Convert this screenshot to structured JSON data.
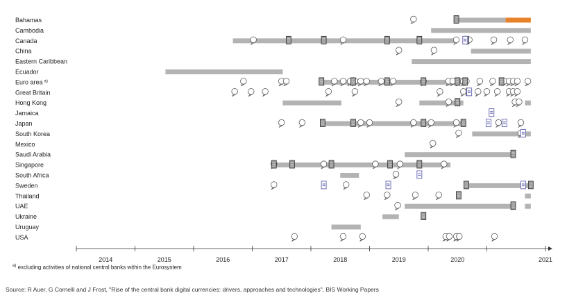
{
  "chart_data": {
    "type": "timeline",
    "x_axis": {
      "ticks": [
        "2014",
        "2015",
        "2016",
        "2017",
        "2018",
        "2019",
        "2020",
        "2021"
      ],
      "range": [
        2013.0,
        2021.0
      ]
    },
    "colors": {
      "bar": "#b3b3b3",
      "orange": "#e8822a",
      "report_icon": "#9a9a9a",
      "blue_icon": "#6f6fb8"
    },
    "footnote": {
      "marker": "a)",
      "text": " excluding activities of national central banks within the Eurosystem"
    },
    "source": "Source: R Auer, G Cornelli and J Frost, \"Rise of the central bank digital currencies: drivers, approaches and technologies\", BIS Working Papers",
    "rows": [
      {
        "name": "Bahamas",
        "sup": "",
        "bars": [
          [
            2019.51,
            2020.32
          ],
          [
            2020.32,
            2020.75
          ]
        ],
        "bar_colors": [
          "#b3b3b3",
          "#e8822a"
        ],
        "speeches": [
          2018.75
        ],
        "reports": [
          2019.48
        ],
        "blue": []
      },
      {
        "name": "Cambodia",
        "sup": "",
        "bars": [
          [
            2019.05,
            2020.75
          ]
        ],
        "speeches": [],
        "reports": [],
        "blue": []
      },
      {
        "name": "Canada",
        "sup": "",
        "bars": [
          [
            2015.67,
            2019.48
          ]
        ],
        "speeches": [
          2016.02,
          2017.55,
          2019.48,
          2019.7,
          2020.12,
          2020.4,
          2020.65
        ],
        "reports": [
          2016.62,
          2017.22,
          2018.3,
          2018.85,
          2019.65
        ],
        "blue": [
          2019.63
        ]
      },
      {
        "name": "China",
        "sup": "",
        "bars": [
          [
            2019.73,
            2020.75
          ]
        ],
        "speeches": [
          2018.5,
          2019.1
        ],
        "reports": [],
        "blue": []
      },
      {
        "name": "Eastern Caribbean",
        "sup": "",
        "bars": [
          [
            2018.72,
            2020.75
          ]
        ],
        "speeches": [],
        "reports": [],
        "blue": []
      },
      {
        "name": "Ecuador",
        "sup": "",
        "bars": [
          [
            2014.52,
            2016.52
          ]
        ],
        "speeches": [],
        "reports": [],
        "blue": []
      },
      {
        "name": "Euro area",
        "sup": "a)",
        "bars": [
          [
            2017.2,
            2019.52
          ]
        ],
        "speeches": [
          2015.85,
          2016.5,
          2016.58,
          2017.4,
          2017.55,
          2017.67,
          2017.75,
          2017.85,
          2017.95,
          2018.2,
          2018.4,
          2018.92,
          2019.35,
          2019.42,
          2019.52,
          2019.6,
          2019.65,
          2019.88,
          2020.1,
          2020.3,
          2020.38,
          2020.45,
          2020.52,
          2020.7
        ],
        "reports": [
          2017.18,
          2017.72,
          2018.3,
          2018.92,
          2019.5,
          2019.63,
          2020.25
        ],
        "blue": []
      },
      {
        "name": "Great Britain",
        "sup": "",
        "bars": [],
        "speeches": [
          2015.7,
          2015.98,
          2016.22,
          2017.3,
          2017.75,
          2019.2,
          2019.6,
          2019.85,
          2020.0,
          2020.18,
          2020.38,
          2020.45,
          2020.52
        ],
        "reports": [
          2019.69
        ],
        "blue": [
          2019.7
        ]
      },
      {
        "name": "Hong Kong",
        "sup": "",
        "bars": [
          [
            2016.52,
            2017.52
          ],
          [
            2018.85,
            2019.6
          ],
          [
            2020.65,
            2020.75
          ]
        ],
        "speeches": [
          2018.5,
          2019.35,
          2020.48,
          2020.55
        ],
        "reports": [
          2019.5
        ],
        "blue": []
      },
      {
        "name": "Jamaica",
        "sup": "",
        "bars": [],
        "speeches": [],
        "reports": [],
        "blue": [
          2020.08
        ]
      },
      {
        "name": "Japan",
        "sup": "",
        "bars": [
          [
            2017.22,
            2019.65
          ]
        ],
        "speeches": [
          2016.5,
          2016.85,
          2017.85,
          2018.0,
          2018.75,
          2019.05,
          2019.48,
          2020.2,
          2020.58
        ],
        "reports": [
          2017.2,
          2017.72,
          2018.92,
          2019.6
        ],
        "blue": [
          2020.03,
          2020.3
        ]
      },
      {
        "name": "South Korea",
        "sup": "",
        "bars": [
          [
            2019.75,
            2020.75
          ]
        ],
        "speeches": [
          2019.52,
          2020.58
        ],
        "reports": [],
        "blue": [
          2020.62
        ]
      },
      {
        "name": "Mexico",
        "sup": "",
        "bars": [],
        "speeches": [
          2019.08
        ],
        "reports": [],
        "blue": []
      },
      {
        "name": "Saudi Arabia",
        "sup": "",
        "bars": [
          [
            2018.6,
            2020.45
          ]
        ],
        "speeches": [],
        "reports": [
          2020.45
        ],
        "blue": []
      },
      {
        "name": "Singapore",
        "sup": "",
        "bars": [
          [
            2016.32,
            2019.38
          ]
        ],
        "speeches": [
          2016.37,
          2017.22,
          2018.1,
          2018.52,
          2019.27
        ],
        "reports": [
          2016.37,
          2016.68,
          2017.35,
          2018.35,
          2018.85
        ],
        "blue": []
      },
      {
        "name": "South Africa",
        "sup": "",
        "bars": [
          [
            2017.5,
            2017.82
          ]
        ],
        "speeches": [
          2018.45
        ],
        "reports": [],
        "blue": [
          2018.85
        ]
      },
      {
        "name": "Sweden",
        "sup": "",
        "bars": [
          [
            2019.65,
            2020.75
          ]
        ],
        "speeches": [
          2016.37,
          2017.6
        ],
        "reports": [
          2019.65,
          2020.75
        ],
        "blue": [
          2017.22,
          2018.32,
          2020.62
        ]
      },
      {
        "name": "Thailand",
        "sup": "",
        "bars": [
          [
            2020.65,
            2020.75
          ]
        ],
        "speeches": [
          2017.95,
          2018.3,
          2018.78,
          2019.18
        ],
        "reports": [
          2019.52
        ],
        "blue": []
      },
      {
        "name": "UAE",
        "sup": "",
        "bars": [
          [
            2018.6,
            2020.45
          ],
          [
            2020.65,
            2020.75
          ]
        ],
        "speeches": [
          2018.48
        ],
        "reports": [
          2020.45
        ],
        "blue": []
      },
      {
        "name": "Ukraine",
        "sup": "",
        "bars": [
          [
            2018.22,
            2018.5
          ]
        ],
        "speeches": [],
        "reports": [
          2018.92
        ],
        "blue": []
      },
      {
        "name": "Uruguay",
        "sup": "",
        "bars": [
          [
            2017.35,
            2017.85
          ]
        ],
        "speeches": [],
        "reports": [],
        "blue": []
      },
      {
        "name": "USA",
        "sup": "",
        "bars": [],
        "speeches": [
          2016.72,
          2017.55,
          2017.88,
          2019.3,
          2019.36,
          2019.48,
          2019.53,
          2020.13
        ],
        "reports": [],
        "blue": []
      }
    ]
  }
}
